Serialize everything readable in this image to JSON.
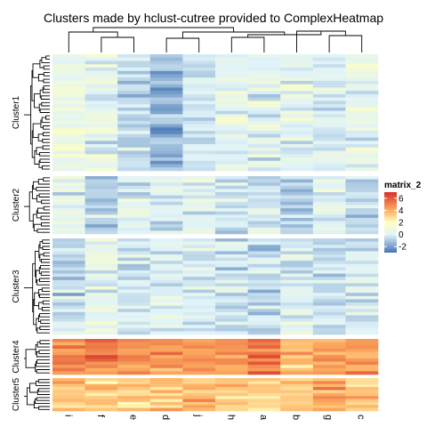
{
  "chart_data": {
    "type": "heatmap",
    "title": "Clusters made by hclust-cutree provided to ComplexHeatmap",
    "columns": [
      "i",
      "f",
      "e",
      "d",
      "j",
      "h",
      "a",
      "b",
      "g",
      "c"
    ],
    "row_slices": [
      {
        "name": "Cluster1",
        "rows": 35
      },
      {
        "name": "Cluster2",
        "rows": 18
      },
      {
        "name": "Cluster3",
        "rows": 30
      },
      {
        "name": "Cluster4",
        "rows": 11
      },
      {
        "name": "Cluster5",
        "rows": 11
      }
    ],
    "column_means": [
      [
        0.6,
        0.4,
        -0.6,
        -1.4,
        -0.3,
        0.2,
        0.1,
        0.3,
        0.0,
        0.4
      ],
      [
        0.3,
        -0.7,
        0.2,
        0.0,
        0.1,
        -0.2,
        -0.4,
        -1.0,
        0.2,
        -0.6
      ],
      [
        -0.6,
        0.4,
        -0.4,
        0.0,
        -0.1,
        -0.3,
        -0.6,
        0.0,
        -0.6,
        -0.3
      ],
      [
        4.5,
        5.0,
        4.7,
        4.2,
        4.6,
        4.3,
        5.2,
        3.5,
        4.4,
        4.4
      ],
      [
        3.5,
        3.0,
        3.2,
        3.3,
        3.9,
        3.5,
        3.0,
        3.2,
        4.3,
        3.6
      ]
    ],
    "legend": {
      "title": "matrix_2",
      "ticks": [
        "6",
        "4",
        "2",
        "0",
        "-2"
      ],
      "placement": "right",
      "range": [
        -3,
        7
      ]
    },
    "colors": {
      "-3": "#4575b4",
      "0": "#e0f3f8",
      "2": "#ffffbf",
      "4": "#fdae61",
      "7": "#d73027"
    },
    "column_dendrogram": true,
    "row_dendrogram": true,
    "xlabel": "",
    "ylabel": ""
  }
}
